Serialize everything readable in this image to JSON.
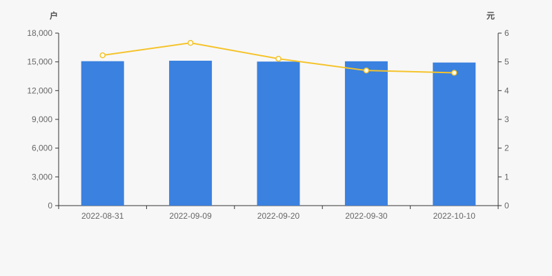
{
  "chart_data": {
    "type": "combo",
    "title": "",
    "categories": [
      "2022-08-31",
      "2022-09-09",
      "2022-09-20",
      "2022-09-30",
      "2022-10-10"
    ],
    "series": [
      {
        "name": "户",
        "type": "bar",
        "axis": "left",
        "values": [
          15070,
          15120,
          15030,
          15060,
          14930
        ],
        "color": "#3a81e0"
      },
      {
        "name": "元",
        "type": "line",
        "axis": "right",
        "values": [
          5.23,
          5.66,
          5.11,
          4.7,
          4.62
        ],
        "color": "#f5c32a",
        "marker": "circle-white-fill"
      }
    ],
    "left_axis": {
      "label": "户",
      "min": 0,
      "max": 18000,
      "tick_step": 3000,
      "tick_labels": [
        "0",
        "3,000",
        "6,000",
        "9,000",
        "12,000",
        "15,000",
        "18,000"
      ]
    },
    "right_axis": {
      "label": "元",
      "min": 0,
      "max": 6,
      "tick_step": 1,
      "tick_labels": [
        "0",
        "1",
        "2",
        "3",
        "4",
        "5",
        "6"
      ]
    },
    "grid": false,
    "legend": "none",
    "layout_hints": {
      "background": "#f7f7f7",
      "axis_line_color": "#333333",
      "tick_label_color": "#666666",
      "axis_name_color": "#4d4d4d"
    }
  }
}
